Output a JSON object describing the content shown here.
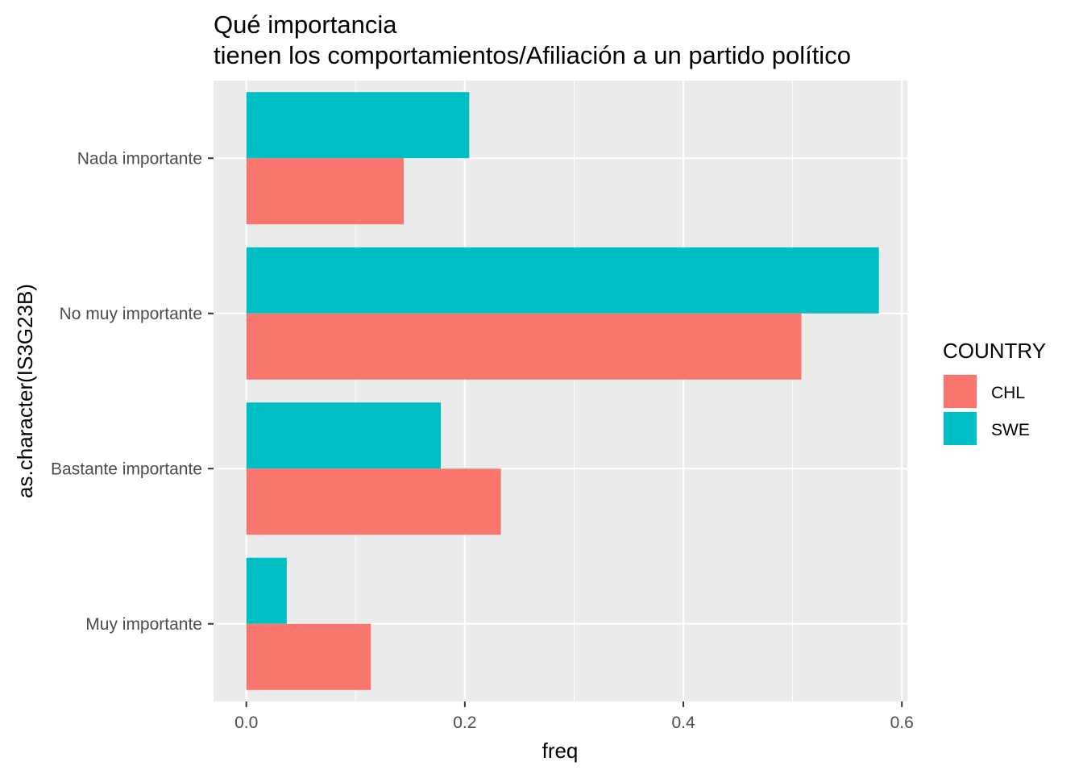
{
  "chart_data": {
    "type": "bar",
    "orientation": "horizontal",
    "title_line1": "Qué importancia",
    "title_line2": "tienen los comportamientos/Afiliación a un partido político",
    "xlabel": "freq",
    "ylabel": "as.character(IS3G23B)",
    "categories": [
      "Nada importante",
      "No muy importante",
      "Bastante importante",
      "Muy importante"
    ],
    "series": [
      {
        "name": "CHL",
        "color": "#F8766D",
        "values": [
          0.144,
          0.508,
          0.233,
          0.114
        ]
      },
      {
        "name": "SWE",
        "color": "#00BFC4",
        "values": [
          0.204,
          0.579,
          0.178,
          0.037
        ]
      }
    ],
    "xlim": [
      -0.03,
      0.605
    ],
    "xticks": [
      0.0,
      0.2,
      0.4,
      0.6
    ],
    "xtick_labels": [
      "0.0",
      "0.2",
      "0.4",
      "0.6"
    ],
    "grid": true,
    "legend": {
      "title": "COUNTRY",
      "placement": "right",
      "entries": [
        "CHL",
        "SWE"
      ]
    },
    "panel_background": "#EBEBEB",
    "grid_color": "#FFFFFF"
  }
}
